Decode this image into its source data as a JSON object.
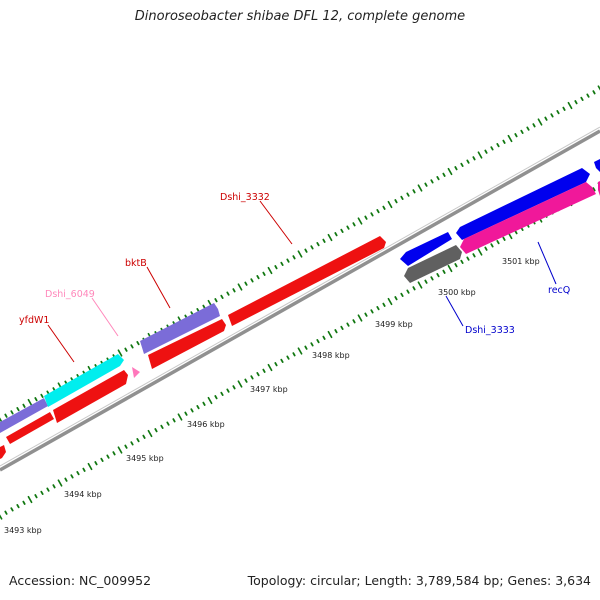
{
  "title": "Dinoroseobacter shibae DFL 12, complete genome",
  "footer": {
    "accession": "Accession: NC_009952",
    "stats": "Topology: circular; Length: 3,789,584 bp; Genes: 3,634"
  },
  "colors": {
    "backbone": "#8c8c8c",
    "tick": "#117711",
    "red_gene": "#ff0000",
    "purple_gene": "#7b68d9",
    "cyan_gene": "#00f0f0",
    "blue_gene": "#0000f0",
    "magenta_gene": "#f0189a",
    "gray_gene": "#606060",
    "pink_gene": "#ff69b4"
  },
  "kbp_labels": [
    "3493 kbp",
    "3494 kbp",
    "3495 kbp",
    "3496 kbp",
    "3497 kbp",
    "3498 kbp",
    "3499 kbp",
    "3500 kbp",
    "3501 kbp"
  ],
  "gene_labels": {
    "dshi_3332": "Dshi_3332",
    "bktb": "bktB",
    "dshi_6049": "Dshi_6049",
    "yfdw1": "yfdW1",
    "dshi_3333": "Dshi_3333",
    "recq": "recQ"
  }
}
